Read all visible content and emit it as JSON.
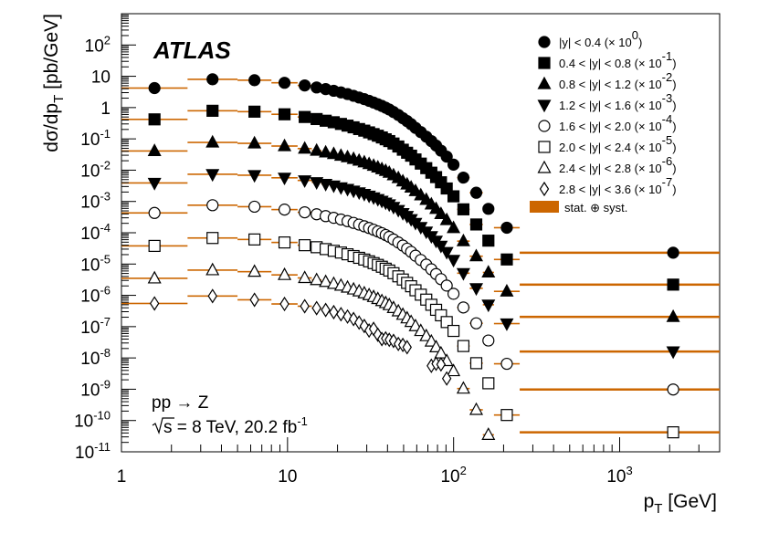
{
  "chart_data": {
    "type": "scatter",
    "title": "ATLAS",
    "xlabel": "p",
    "xlabel_sub": "T",
    "xlabel_unit": " [GeV]",
    "ylabel": "dσ/dp",
    "ylabel_sub": "T",
    "ylabel_unit": " [pb/GeV]",
    "xscale": "log",
    "yscale": "log",
    "xlim": [
      1,
      4000
    ],
    "ylim": [
      1e-11,
      1000
    ],
    "x_ticks": [
      {
        "value": 1,
        "label": "1"
      },
      {
        "value": 10,
        "label": "10"
      },
      {
        "value": 100,
        "label": "10",
        "exp": "2"
      },
      {
        "value": 1000,
        "label": "10",
        "exp": "3"
      }
    ],
    "y_ticks": [
      {
        "value": 1e-11,
        "label": "10",
        "exp": "-11"
      },
      {
        "value": 1e-10,
        "label": "10",
        "exp": "-10"
      },
      {
        "value": 1e-09,
        "label": "10",
        "exp": "-9"
      },
      {
        "value": 1e-08,
        "label": "10",
        "exp": "-8"
      },
      {
        "value": 1e-07,
        "label": "10",
        "exp": "-7"
      },
      {
        "value": 1e-06,
        "label": "10",
        "exp": "-6"
      },
      {
        "value": 1e-05,
        "label": "10",
        "exp": "-5"
      },
      {
        "value": 0.0001,
        "label": "10",
        "exp": "-4"
      },
      {
        "value": 0.001,
        "label": "10",
        "exp": "-3"
      },
      {
        "value": 0.01,
        "label": "10",
        "exp": "-2"
      },
      {
        "value": 0.1,
        "label": "10",
        "exp": "-1"
      },
      {
        "value": 1,
        "label": "1"
      },
      {
        "value": 10,
        "label": "10"
      },
      {
        "value": 100,
        "label": "10",
        "exp": "2"
      }
    ],
    "annotation": {
      "line1": "pp → Z",
      "line2_sqrt": "s",
      "line2_text": " = 8 TeV, 20.2 fb",
      "line2_exp": "-1"
    },
    "band_color": "#cc6600",
    "band_legend": "stat. ⊕ syst.",
    "bin_edges": [
      1,
      2.5,
      5,
      8,
      11.5,
      14,
      16,
      18,
      20,
      22,
      24,
      26,
      28,
      30,
      32,
      34,
      36,
      38,
      40,
      42,
      45,
      48,
      51,
      54,
      57,
      61,
      66,
      71,
      76,
      81,
      87,
      95,
      105,
      125,
      150,
      175,
      250,
      4000
    ],
    "series": [
      {
        "name": "|y| < 0.4 (× 10^0)",
        "legend_prefix": "|y| < 0.4 (× 10",
        "legend_exp": "0",
        "marker": "circle",
        "filled": true,
        "values": [
          4.2,
          8.0,
          7.5,
          6.2,
          5.1,
          4.4,
          3.9,
          3.45,
          3.05,
          2.7,
          2.38,
          2.1,
          1.86,
          1.64,
          1.45,
          1.28,
          1.13,
          0.99,
          0.87,
          0.72,
          0.58,
          0.46,
          0.37,
          0.295,
          0.225,
          0.165,
          0.118,
          0.085,
          0.061,
          0.042,
          0.027,
          0.015,
          0.0058,
          0.0019,
          0.00058,
          0.000145,
          2.3e-05
        ]
      },
      {
        "name": "0.4 < |y| < 0.8 (× 10^-1)",
        "legend_prefix": "0.4 < |y| < 0.8 (× 10",
        "legend_exp": "-1",
        "marker": "square",
        "filled": true,
        "values": [
          0.42,
          0.79,
          0.74,
          0.61,
          0.5,
          0.43,
          0.38,
          0.34,
          0.3,
          0.265,
          0.234,
          0.206,
          0.183,
          0.161,
          0.142,
          0.126,
          0.111,
          0.097,
          0.085,
          0.071,
          0.057,
          0.045,
          0.036,
          0.029,
          0.022,
          0.0162,
          0.0116,
          0.0083,
          0.006,
          0.0041,
          0.0026,
          0.00146,
          0.00056,
          0.000184,
          5.6e-05,
          1.4e-05,
          2.2e-06
        ]
      },
      {
        "name": "0.8 < |y| < 1.2 (× 10^-2)",
        "legend_prefix": "0.8 < |y| < 1.2 (× 10",
        "legend_exp": "-2",
        "marker": "triangle-up",
        "filled": true,
        "values": [
          0.041,
          0.077,
          0.072,
          0.059,
          0.049,
          0.042,
          0.037,
          0.033,
          0.029,
          0.026,
          0.023,
          0.0202,
          0.0179,
          0.0158,
          0.0139,
          0.0123,
          0.0108,
          0.0095,
          0.0083,
          0.0069,
          0.0056,
          0.0044,
          0.0035,
          0.0028,
          0.00215,
          0.00158,
          0.00113,
          0.00081,
          0.00058,
          0.0004,
          0.000255,
          0.000142,
          5.4e-05,
          1.78e-05,
          5.4e-06,
          1.34e-06,
          2.05e-07
        ]
      },
      {
        "name": "1.2 < |y| < 1.6 (× 10^-3)",
        "legend_prefix": "1.2 < |y| < 1.6 (× 10",
        "legend_exp": "-3",
        "marker": "triangle-down",
        "filled": true,
        "values": [
          0.0039,
          0.0074,
          0.0069,
          0.0057,
          0.0047,
          0.0041,
          0.0036,
          0.0032,
          0.0028,
          0.0025,
          0.0022,
          0.00194,
          0.00172,
          0.00152,
          0.00134,
          0.00118,
          0.00104,
          0.00091,
          0.0008,
          0.00066,
          0.00053,
          0.00042,
          0.00034,
          0.00027,
          0.000205,
          0.000151,
          0.000108,
          7.7e-05,
          5.5e-05,
          3.8e-05,
          2.4e-05,
          1.35e-05,
          5.1e-06,
          1.68e-06,
          5e-07,
          1.25e-07,
          1.6e-08
        ]
      },
      {
        "name": "1.6 < |y| < 2.0 (× 10^-4)",
        "legend_prefix": "1.6 < |y| < 2.0 (× 10",
        "legend_exp": "-4",
        "marker": "circle",
        "filled": false,
        "values": [
          0.00043,
          0.00076,
          0.00068,
          0.00055,
          0.00045,
          0.00039,
          0.00034,
          0.0003,
          0.000265,
          0.000235,
          0.000207,
          0.000182,
          0.000161,
          0.000142,
          0.000125,
          0.00011,
          9.7e-05,
          8.5e-05,
          7.4e-05,
          6.1e-05,
          4.9e-05,
          3.9e-05,
          3.1e-05,
          2.45e-05,
          1.85e-05,
          1.35e-05,
          9.6e-06,
          6.8e-06,
          4.8e-06,
          3.3e-06,
          2.05e-06,
          1.12e-06,
          4.1e-07,
          1.28e-07,
          3.6e-08,
          6.5e-09,
          9.8e-10
        ]
      },
      {
        "name": "2.0 < |y| < 2.4 (× 10^-5)",
        "legend_prefix": "2.0 < |y| < 2.4 (× 10",
        "legend_exp": "-5",
        "marker": "square",
        "filled": false,
        "values": [
          3.8e-05,
          6.8e-05,
          6.1e-05,
          4.9e-05,
          4e-05,
          3.45e-05,
          3e-05,
          2.65e-05,
          2.33e-05,
          2.05e-05,
          1.8e-05,
          1.58e-05,
          1.39e-05,
          1.22e-05,
          1.07e-05,
          9.4e-06,
          8.2e-06,
          7.1e-06,
          6.2e-06,
          5.1e-06,
          4.05e-06,
          3.2e-06,
          2.5e-06,
          1.95e-06,
          1.45e-06,
          1.05e-06,
          7.3e-07,
          5e-07,
          3.45e-07,
          2.3e-07,
          1.4e-07,
          7.3e-08,
          2.4e-08,
          6.8e-09,
          1.55e-09,
          1.5e-10,
          4.2e-11
        ]
      },
      {
        "name": "2.4 < |y| < 2.8 (× 10^-6)",
        "legend_prefix": "2.4 < |y| < 2.8 (× 10",
        "legend_exp": "-6",
        "marker": "triangle-up",
        "filled": false,
        "values": [
          3.5e-06,
          6.4e-06,
          5.7e-06,
          4.5e-06,
          3.6e-06,
          3.1e-06,
          2.7e-06,
          2.35e-06,
          2.05e-06,
          1.78e-06,
          1.55e-06,
          1.35e-06,
          1.17e-06,
          1.02e-06,
          8.9e-07,
          7.7e-07,
          6.6e-07,
          5.7e-07,
          4.9e-07,
          3.95e-07,
          3.1e-07,
          2.4e-07,
          1.85e-07,
          1.42e-07,
          1.04e-07,
          7.3e-08,
          5e-08,
          3.35e-08,
          2.2e-08,
          1.4e-08,
          8e-09,
          3.8e-09,
          1.05e-09,
          2.2e-10,
          3.5e-11,
          null,
          null
        ]
      },
      {
        "name": "2.8 < |y| < 3.6 (× 10^-7)",
        "legend_prefix": "2.8 < |y| < 3.6 (× 10",
        "legend_exp": "-7",
        "marker": "diamond",
        "filled": false,
        "values": [
          5.5e-07,
          9.5e-07,
          7.2e-07,
          5.3e-07,
          4.5e-07,
          3.9e-07,
          3.4e-07,
          2.9e-07,
          2.5e-07,
          2.1e-07,
          1.75e-07,
          1.35e-07,
          1.05e-07,
          7.5e-08,
          8.5e-08,
          5.5e-08,
          4e-08,
          4.2e-08,
          3.8e-08,
          3.5e-08,
          2.8e-08,
          2.6e-08,
          2.2e-08,
          null,
          null,
          null,
          null,
          5.6e-09,
          6.5e-09,
          6.2e-09,
          2.2e-09,
          null,
          null,
          null,
          null,
          null,
          null
        ]
      }
    ]
  }
}
